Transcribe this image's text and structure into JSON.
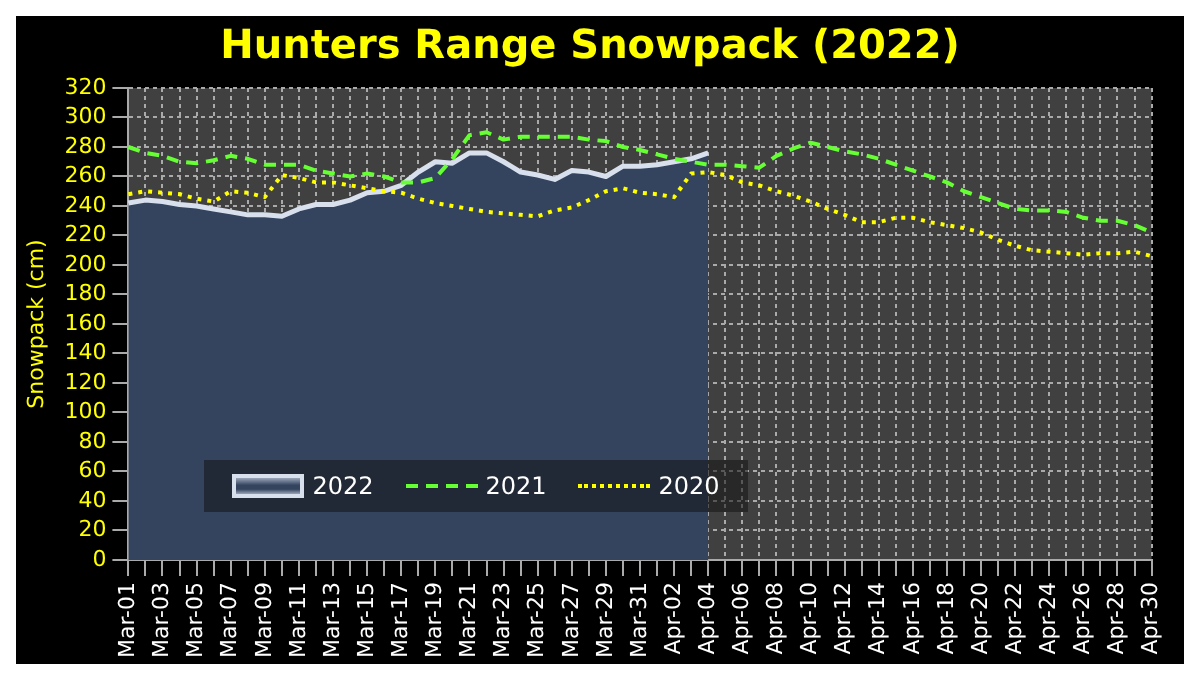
{
  "chart_data": {
    "type": "line",
    "title": "Hunters Range Snowpack (2022)",
    "ylabel": "Snowpack (cm)",
    "categories": [
      "Mar-01",
      null,
      "Mar-03",
      null,
      "Mar-05",
      null,
      "Mar-07",
      null,
      "Mar-09",
      null,
      "Mar-11",
      null,
      "Mar-13",
      null,
      "Mar-15",
      null,
      "Mar-17",
      null,
      "Mar-19",
      null,
      "Mar-21",
      null,
      "Mar-23",
      null,
      "Mar-25",
      null,
      "Mar-27",
      null,
      "Mar-29",
      null,
      "Mar-31",
      null,
      "Apr-02",
      null,
      "Apr-04",
      null,
      "Apr-06",
      null,
      "Apr-08",
      null,
      "Apr-10",
      null,
      "Apr-12",
      null,
      "Apr-14",
      null,
      "Apr-16",
      null,
      "Apr-18",
      null,
      "Apr-20",
      null,
      "Apr-22",
      null,
      "Apr-24",
      null,
      "Apr-26",
      null,
      "Apr-28",
      null,
      "Apr-30"
    ],
    "series": [
      {
        "name": "2022",
        "type": "area",
        "color": "#34445f",
        "values": [
          242,
          244,
          243,
          241,
          240,
          238,
          236,
          234,
          234,
          233,
          238,
          241,
          241,
          244,
          249,
          250,
          254,
          263,
          270,
          269,
          276,
          276,
          270,
          263,
          261,
          258,
          264,
          263,
          260,
          267,
          267,
          268,
          270,
          272,
          276,
          null,
          null,
          null,
          null,
          null,
          null,
          null,
          null,
          null,
          null,
          null,
          null,
          null,
          null,
          null,
          null,
          null,
          null,
          null,
          null,
          null,
          null,
          null,
          null,
          null,
          null
        ]
      },
      {
        "name": "2021",
        "type": "line",
        "line_style": "dashed",
        "color": "#66ff33",
        "values": [
          280,
          276,
          274,
          270,
          269,
          271,
          274,
          272,
          268,
          268,
          268,
          264,
          262,
          260,
          262,
          260,
          256,
          256,
          259,
          272,
          288,
          290,
          285,
          287,
          287,
          287,
          287,
          285,
          284,
          280,
          278,
          275,
          272,
          270,
          268,
          268,
          267,
          266,
          274,
          279,
          283,
          280,
          277,
          275,
          272,
          268,
          264,
          260,
          256,
          250,
          246,
          242,
          238,
          237,
          237,
          236,
          232,
          230,
          230,
          227,
          222
        ]
      },
      {
        "name": "2020",
        "type": "line",
        "line_style": "dotted",
        "color": "#ffff00",
        "values": [
          248,
          250,
          249,
          248,
          245,
          243,
          250,
          249,
          246,
          261,
          259,
          256,
          256,
          254,
          252,
          250,
          249,
          245,
          242,
          240,
          238,
          236,
          235,
          234,
          233,
          237,
          239,
          244,
          250,
          252,
          249,
          248,
          246,
          262,
          263,
          261,
          256,
          254,
          250,
          247,
          243,
          238,
          234,
          229,
          229,
          232,
          232,
          229,
          227,
          225,
          222,
          217,
          213,
          210,
          209,
          208,
          207,
          208,
          208,
          209,
          206
        ]
      }
    ],
    "ylim": [
      0,
      320
    ],
    "yticks": [
      0,
      20,
      40,
      60,
      80,
      100,
      120,
      140,
      160,
      180,
      200,
      220,
      240,
      260,
      280,
      300,
      320
    ],
    "grid": true,
    "legend": "bottom left",
    "marker": "none"
  }
}
